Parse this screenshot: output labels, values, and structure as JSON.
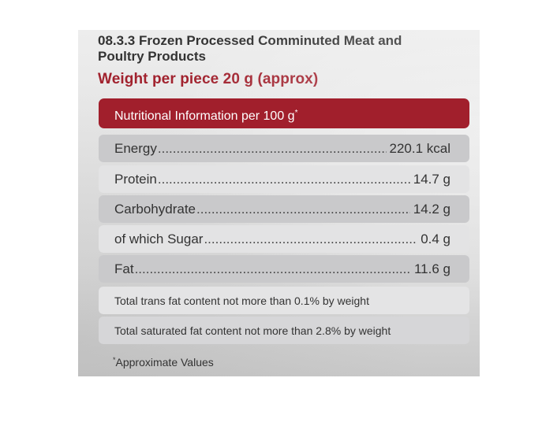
{
  "product": {
    "title": "08.3.3 Frozen Processed Comminuted Meat and Poultry Products",
    "weight_per_piece": "Weight per piece 20 g (approx)"
  },
  "nutrition_table": {
    "header": "Nutritional Information per 100 g",
    "header_marker": "*",
    "rows": [
      {
        "name": "Energy",
        "value": "220.1 kcal"
      },
      {
        "name": "Protein",
        "value": "14.7 g"
      },
      {
        "name": "Carbohydrate",
        "value": "14.2 g"
      },
      {
        "name": "of which Sugar",
        "value": "0.4 g"
      },
      {
        "name": "Fat",
        "value": "11.6 g"
      }
    ],
    "notes": [
      "Total trans fat content not more than 0.1% by weight",
      "Total saturated fat content not more than 2.8% by weight"
    ]
  },
  "footnote": {
    "marker": "*",
    "text": "Approximate Values"
  },
  "colors": {
    "accent_red": "#a11f2c",
    "row_dark": "#c9c9cb",
    "row_light": "#e3e3e4"
  }
}
